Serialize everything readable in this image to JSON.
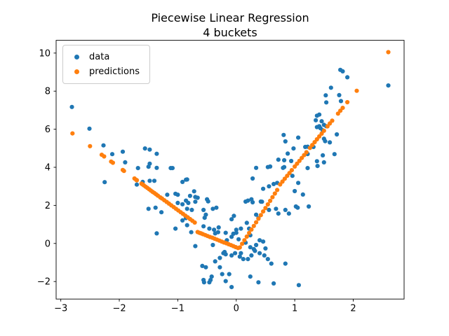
{
  "figure": {
    "title": "Piecewise Linear Regression",
    "subtitle": "4 buckets"
  },
  "legend": {
    "items": [
      {
        "label": "data",
        "color": "#1f77b4"
      },
      {
        "label": "predictions",
        "color": "#ff7f0e"
      }
    ]
  },
  "chart_data": {
    "type": "scatter",
    "title": "Piecewise Linear Regression",
    "subtitle": "4 buckets",
    "xlabel": "",
    "ylabel": "",
    "xlim": [
      -3.08,
      2.87
    ],
    "ylim": [
      -2.92,
      10.67
    ],
    "xticks": [
      -3,
      -2,
      -1,
      0,
      1,
      2
    ],
    "xtick_labels": [
      "−3",
      "−2",
      "−1",
      "0",
      "1",
      "2"
    ],
    "yticks": [
      -2,
      0,
      2,
      4,
      6,
      8,
      10
    ],
    "ytick_labels": [
      "−2",
      "0",
      "2",
      "4",
      "6",
      "8",
      "10"
    ],
    "grid": false,
    "legend_position": "upper left",
    "axis_color": "#000000",
    "marker_radius": 3.1,
    "series": [
      {
        "name": "data",
        "color": "#1f77b4",
        "points": [
          [
            -2.81,
            7.17
          ],
          [
            -2.51,
            6.03
          ],
          [
            -2.27,
            5.15
          ],
          [
            -2.25,
            3.22
          ],
          [
            -2.12,
            4.69
          ],
          [
            -1.94,
            4.82
          ],
          [
            -1.9,
            4.26
          ],
          [
            -1.7,
            3.09
          ],
          [
            -1.68,
            3.96
          ],
          [
            -1.6,
            3.23
          ],
          [
            -1.56,
            4.99
          ],
          [
            -1.5,
            4.03
          ],
          [
            -1.5,
            1.82
          ],
          [
            -1.48,
            4.93
          ],
          [
            -1.48,
            4.19
          ],
          [
            -1.48,
            3.29
          ],
          [
            -1.4,
            3.29
          ],
          [
            -1.38,
            1.88
          ],
          [
            -1.36,
            4.71
          ],
          [
            -1.36,
            3.97
          ],
          [
            -1.36,
            0.53
          ],
          [
            -1.28,
            1.64
          ],
          [
            -1.18,
            2.56
          ],
          [
            -1.12,
            3.96
          ],
          [
            -1.09,
            3.96
          ],
          [
            -1.04,
            2.61
          ],
          [
            -1.04,
            0.78
          ],
          [
            -1.0,
            2.56
          ],
          [
            -1.0,
            2.13
          ],
          [
            -0.92,
            3.23
          ],
          [
            -0.92,
            2.06
          ],
          [
            -0.92,
            1.21
          ],
          [
            -0.86,
            3.35
          ],
          [
            -0.86,
            2.25
          ],
          [
            -0.86,
            1.33
          ],
          [
            -0.84,
            3.36
          ],
          [
            -0.84,
            1.82
          ],
          [
            -0.84,
            0.96
          ],
          [
            -0.82,
            2.13
          ],
          [
            -0.79,
            2.5
          ],
          [
            -0.77,
            0.59
          ],
          [
            -0.76,
            1.76
          ],
          [
            -0.72,
            2.74
          ],
          [
            -0.7,
            2.44
          ],
          [
            -0.7,
            2.19
          ],
          [
            -0.7,
            -0.14
          ],
          [
            -0.66,
            2.4
          ],
          [
            -0.58,
            -1.18
          ],
          [
            -0.56,
            1.76
          ],
          [
            -0.56,
            0.9
          ],
          [
            -0.56,
            -1.92
          ],
          [
            -0.55,
            -2.04
          ],
          [
            -0.54,
            1.35
          ],
          [
            -0.52,
            1.51
          ],
          [
            -0.52,
            -1.25
          ],
          [
            -0.5,
            2.32
          ],
          [
            -0.48,
            2.21
          ],
          [
            -0.46,
            0.78
          ],
          [
            -0.46,
            -2.04
          ],
          [
            -0.44,
            -1.92
          ],
          [
            -0.42,
            -1.74
          ],
          [
            -0.4,
            1.82
          ],
          [
            -0.4,
            -0.08
          ],
          [
            -0.38,
            0.72
          ],
          [
            -0.36,
            0.53
          ],
          [
            -0.36,
            -0.94
          ],
          [
            -0.34,
            1.88
          ],
          [
            -0.31,
            0.59
          ],
          [
            -0.3,
            0.84
          ],
          [
            -0.28,
            -0.76
          ],
          [
            -0.28,
            -1.25
          ],
          [
            -0.24,
            -1.61
          ],
          [
            -0.22,
            -0.51
          ],
          [
            -0.2,
            -0.45
          ],
          [
            -0.18,
            0.56
          ],
          [
            -0.18,
            -0.57
          ],
          [
            -0.18,
            -1.98
          ],
          [
            -0.16,
            0.17
          ],
          [
            -0.12,
            -1.61
          ],
          [
            -0.08,
            1.27
          ],
          [
            -0.08,
            0.35
          ],
          [
            -0.08,
            -0.63
          ],
          [
            -0.08,
            -2.29
          ],
          [
            -0.05,
            0.51
          ],
          [
            -0.04,
            1.45
          ],
          [
            -0.02,
            -0.51
          ],
          [
            0.0,
            0.72
          ],
          [
            0.0,
            0.56
          ],
          [
            0.04,
            0.22
          ],
          [
            0.06,
            -0.69
          ],
          [
            0.08,
            0.78
          ],
          [
            0.08,
            -0.51
          ],
          [
            0.12,
            -0.82
          ],
          [
            0.16,
            2.2
          ],
          [
            0.16,
            0.04
          ],
          [
            0.18,
            1.08
          ],
          [
            0.2,
            2.25
          ],
          [
            0.2,
            -0.82
          ],
          [
            0.22,
            0.78
          ],
          [
            0.24,
            0.43
          ],
          [
            0.24,
            -0.2
          ],
          [
            0.24,
            -1.74
          ],
          [
            0.26,
            2.32
          ],
          [
            0.26,
            -0.63
          ],
          [
            0.28,
            3.41
          ],
          [
            0.28,
            2.16
          ],
          [
            0.3,
            -0.3
          ],
          [
            0.32,
            -0.39
          ],
          [
            0.34,
            3.97
          ],
          [
            0.34,
            1.51
          ],
          [
            0.34,
            -0.08
          ],
          [
            0.38,
            1.33
          ],
          [
            0.38,
            -2.04
          ],
          [
            0.4,
            0.17
          ],
          [
            0.4,
            -0.51
          ],
          [
            0.42,
            2.2
          ],
          [
            0.44,
            2.19
          ],
          [
            0.46,
            2.87
          ],
          [
            0.46,
            0.1
          ],
          [
            0.48,
            -0.63
          ],
          [
            0.5,
            -0.26
          ],
          [
            0.54,
            4.01
          ],
          [
            0.54,
            -0.82
          ],
          [
            0.56,
            3.0
          ],
          [
            0.56,
            1.76
          ],
          [
            0.58,
            4.04
          ],
          [
            0.6,
            -1.06
          ],
          [
            0.64,
            3.12
          ],
          [
            0.64,
            -2.1
          ],
          [
            0.68,
            1.82
          ],
          [
            0.7,
            3.18
          ],
          [
            0.72,
            1.57
          ],
          [
            0.72,
            4.4
          ],
          [
            0.8,
            3.97
          ],
          [
            0.81,
            5.7
          ],
          [
            0.82,
            4.37
          ],
          [
            0.82,
            4.01
          ],
          [
            0.84,
            5.36
          ],
          [
            0.84,
            1.76
          ],
          [
            0.84,
            -1.06
          ],
          [
            0.88,
            4.72
          ],
          [
            0.9,
            1.57
          ],
          [
            0.94,
            4.33
          ],
          [
            0.96,
            3.55
          ],
          [
            0.98,
            4.99
          ],
          [
            1.0,
            2.75
          ],
          [
            1.02,
            1.94
          ],
          [
            1.05,
            1.88
          ],
          [
            1.06,
            5.56
          ],
          [
            1.06,
            3.18
          ],
          [
            1.07,
            -2.19
          ],
          [
            1.14,
            2.57
          ],
          [
            1.18,
            5.07
          ],
          [
            1.22,
            5.08
          ],
          [
            1.22,
            4.7
          ],
          [
            1.22,
            3.96
          ],
          [
            1.24,
            1.94
          ],
          [
            1.32,
            5.07
          ],
          [
            1.36,
            6.47
          ],
          [
            1.38,
            6.71
          ],
          [
            1.38,
            6.11
          ],
          [
            1.38,
            4.32
          ],
          [
            1.39,
            4.07
          ],
          [
            1.42,
            6.77
          ],
          [
            1.42,
            6.16
          ],
          [
            1.44,
            6.05
          ],
          [
            1.46,
            6.42
          ],
          [
            1.48,
            5.94
          ],
          [
            1.48,
            4.63
          ],
          [
            1.5,
            6.23
          ],
          [
            1.5,
            5.5
          ],
          [
            1.5,
            4.26
          ],
          [
            1.52,
            5.37
          ],
          [
            1.53,
            7.78
          ],
          [
            1.54,
            7.41
          ],
          [
            1.54,
            6.16
          ],
          [
            1.6,
            5.31
          ],
          [
            1.62,
            8.18
          ],
          [
            1.68,
            4.69
          ],
          [
            1.72,
            5.73
          ],
          [
            1.76,
            7.79
          ],
          [
            1.78,
            9.12
          ],
          [
            1.79,
            7.48
          ],
          [
            1.82,
            9.04
          ],
          [
            1.9,
            8.73
          ],
          [
            2.6,
            8.3
          ]
        ]
      },
      {
        "name": "predictions",
        "color": "#ff7f0e",
        "points": [
          [
            -2.8,
            5.78
          ],
          [
            -2.5,
            5.11
          ],
          [
            -2.3,
            4.66
          ],
          [
            -2.26,
            4.57
          ],
          [
            -2.14,
            4.3
          ],
          [
            -2.11,
            4.24
          ],
          [
            -1.94,
            3.86
          ],
          [
            -1.92,
            3.81
          ],
          [
            -1.74,
            3.41
          ],
          [
            -1.71,
            3.34
          ],
          [
            -1.7,
            3.32
          ],
          [
            -1.62,
            3.14
          ],
          [
            -1.6,
            3.1
          ],
          [
            -1.58,
            3.05
          ],
          [
            -1.55,
            2.98
          ],
          [
            -1.52,
            2.92
          ],
          [
            -1.49,
            2.85
          ],
          [
            -1.46,
            2.78
          ],
          [
            -1.43,
            2.71
          ],
          [
            -1.4,
            2.65
          ],
          [
            -1.37,
            2.58
          ],
          [
            -1.34,
            2.51
          ],
          [
            -1.3,
            2.42
          ],
          [
            -1.27,
            2.36
          ],
          [
            -1.23,
            2.27
          ],
          [
            -1.19,
            2.18
          ],
          [
            -1.15,
            2.09
          ],
          [
            -1.11,
            2.0
          ],
          [
            -1.07,
            1.91
          ],
          [
            -1.03,
            1.82
          ],
          [
            -0.99,
            1.73
          ],
          [
            -0.95,
            1.64
          ],
          [
            -0.91,
            1.55
          ],
          [
            -0.87,
            1.46
          ],
          [
            -0.83,
            1.37
          ],
          [
            -0.79,
            1.28
          ],
          [
            -0.75,
            1.19
          ],
          [
            -0.71,
            1.1
          ],
          [
            -0.66,
            0.6
          ],
          [
            -0.63,
            0.56
          ],
          [
            -0.6,
            0.53
          ],
          [
            -0.57,
            0.49
          ],
          [
            -0.53,
            0.44
          ],
          [
            -0.49,
            0.39
          ],
          [
            -0.45,
            0.34
          ],
          [
            -0.41,
            0.3
          ],
          [
            -0.37,
            0.25
          ],
          [
            -0.33,
            0.2
          ],
          [
            -0.29,
            0.15
          ],
          [
            -0.25,
            0.1
          ],
          [
            -0.21,
            0.05
          ],
          [
            -0.17,
            0.01
          ],
          [
            -0.13,
            -0.04
          ],
          [
            -0.09,
            -0.09
          ],
          [
            -0.05,
            -0.14
          ],
          [
            -0.01,
            -0.19
          ],
          [
            0.03,
            -0.24
          ],
          [
            0.06,
            -0.21
          ],
          [
            0.1,
            -0.02
          ],
          [
            0.14,
            0.17
          ],
          [
            0.18,
            0.36
          ],
          [
            0.22,
            0.55
          ],
          [
            0.26,
            0.73
          ],
          [
            0.3,
            0.92
          ],
          [
            0.34,
            1.11
          ],
          [
            0.38,
            1.3
          ],
          [
            0.42,
            1.49
          ],
          [
            0.46,
            1.68
          ],
          [
            0.5,
            1.86
          ],
          [
            0.54,
            2.05
          ],
          [
            0.58,
            2.24
          ],
          [
            0.62,
            2.43
          ],
          [
            0.66,
            2.62
          ],
          [
            0.7,
            2.81
          ],
          [
            0.75,
            3.1
          ],
          [
            0.79,
            3.25
          ],
          [
            0.83,
            3.4
          ],
          [
            0.87,
            3.55
          ],
          [
            0.91,
            3.7
          ],
          [
            0.95,
            3.85
          ],
          [
            1.0,
            4.04
          ],
          [
            1.04,
            4.19
          ],
          [
            1.08,
            4.34
          ],
          [
            1.12,
            4.49
          ],
          [
            1.16,
            4.64
          ],
          [
            1.2,
            4.79
          ],
          [
            1.26,
            5.02
          ],
          [
            1.3,
            5.17
          ],
          [
            1.34,
            5.32
          ],
          [
            1.38,
            5.47
          ],
          [
            1.42,
            5.62
          ],
          [
            1.46,
            5.77
          ],
          [
            1.5,
            5.92
          ],
          [
            1.56,
            6.15
          ],
          [
            1.6,
            6.3
          ],
          [
            1.64,
            6.45
          ],
          [
            1.74,
            6.82
          ],
          [
            1.78,
            6.97
          ],
          [
            1.82,
            7.12
          ],
          [
            1.9,
            7.42
          ],
          [
            2.06,
            8.02
          ],
          [
            2.6,
            10.05
          ]
        ]
      }
    ]
  }
}
